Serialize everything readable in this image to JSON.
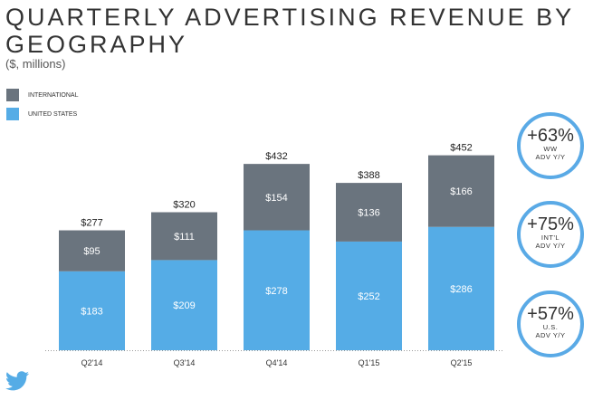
{
  "chart_data": {
    "type": "bar",
    "stacked": true,
    "title": "QUARTERLY ADVERTISING REVENUE BY GEOGRAPHY",
    "subtitle": "($, millions)",
    "categories": [
      "Q2'14",
      "Q3'14",
      "Q4'14",
      "Q1'15",
      "Q2'15"
    ],
    "series": [
      {
        "name": "UNITED STATES",
        "color": "#55ace6",
        "values": [
          183,
          209,
          278,
          252,
          286
        ],
        "labels": [
          "$183",
          "$209",
          "$278",
          "$252",
          "$286"
        ]
      },
      {
        "name": "INTERNATIONAL",
        "color": "#6a747e",
        "values": [
          95,
          111,
          154,
          136,
          166
        ],
        "labels": [
          "$95",
          "$111",
          "$154",
          "$136",
          "$166"
        ]
      }
    ],
    "totals": [
      277,
      320,
      432,
      388,
      452
    ],
    "total_labels": [
      "$277",
      "$320",
      "$432",
      "$388",
      "$452"
    ],
    "ylim": [
      0,
      460
    ],
    "grid": false,
    "legend": "top-left"
  },
  "callouts": [
    {
      "value": "+63%",
      "line1": "WW",
      "line2": "ADV Y/Y"
    },
    {
      "value": "+75%",
      "line1": "INT'L",
      "line2": "ADV Y/Y"
    },
    {
      "value": "+57%",
      "line1": "U.S.",
      "line2": "ADV Y/Y"
    }
  ],
  "logo": "twitter-bird"
}
